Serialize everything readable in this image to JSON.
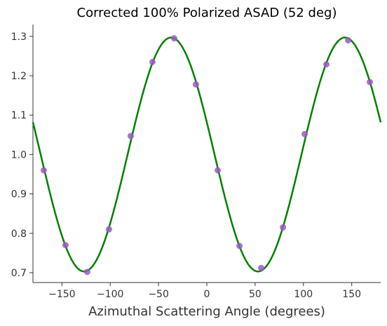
{
  "chart_data": {
    "type": "scatter",
    "title": "Corrected 100% Polarized ASAD (52 deg)",
    "xlabel": "Azimuthal Scattering Angle (degrees)",
    "ylabel": "",
    "xlim": [
      -180,
      180
    ],
    "ylim": [
      0.675,
      1.33
    ],
    "xticks": [
      -150,
      -100,
      -50,
      0,
      50,
      100,
      150
    ],
    "xtick_labels": [
      "−150",
      "−100",
      "−50",
      "0",
      "50",
      "100",
      "150"
    ],
    "yticks": [
      0.7,
      0.8,
      0.9,
      1.0,
      1.1,
      1.2,
      1.3
    ],
    "ytick_labels": [
      "0.7",
      "0.8",
      "0.9",
      "1.0",
      "1.1",
      "1.2",
      "1.3"
    ],
    "grid": false,
    "series": [
      {
        "type": "scatter",
        "color": "#9b59c6",
        "points": [
          {
            "x": -168.8,
            "y": 0.96
          },
          {
            "x": -146.3,
            "y": 0.77
          },
          {
            "x": -123.8,
            "y": 0.702
          },
          {
            "x": -101.3,
            "y": 0.81
          },
          {
            "x": -78.8,
            "y": 1.047
          },
          {
            "x": -56.3,
            "y": 1.235
          },
          {
            "x": -33.8,
            "y": 1.295
          },
          {
            "x": -11.3,
            "y": 1.178
          },
          {
            "x": 11.3,
            "y": 0.96
          },
          {
            "x": 33.8,
            "y": 0.768
          },
          {
            "x": 56.3,
            "y": 0.712
          },
          {
            "x": 78.8,
            "y": 0.815
          },
          {
            "x": 101.3,
            "y": 1.052
          },
          {
            "x": 123.8,
            "y": 1.229
          },
          {
            "x": 146.3,
            "y": 1.29
          },
          {
            "x": 168.8,
            "y": 1.184
          }
        ]
      },
      {
        "type": "line",
        "color": "#008000",
        "x_range": [
          -180,
          180
        ],
        "fit": {
          "offset": 1.0,
          "amplitude": 0.297,
          "period_deg": 180,
          "peak_x_deg": -37
        }
      }
    ]
  }
}
